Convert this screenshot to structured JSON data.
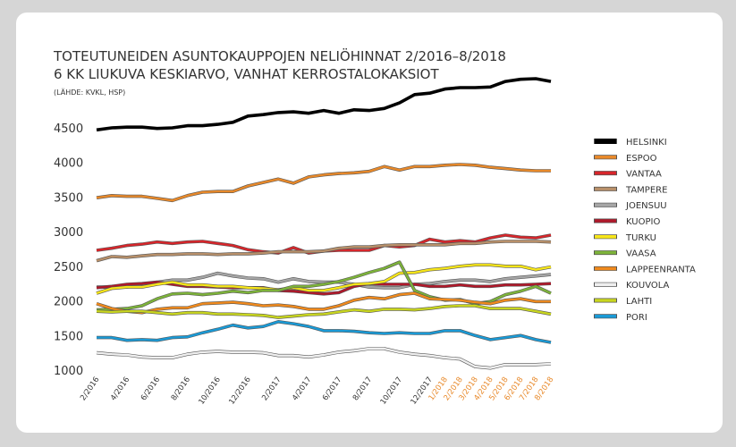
{
  "chart_data": {
    "type": "line",
    "title": "TOTEUTUNEIDEN ASUNTOKAUPPOJEN NELIÖHINNAT 2/2016–8/2018",
    "subtitle": "6 KK LIUKUVA KESKIARVO, VANHAT KERROSTALOKAKSIOT",
    "source": "(LÄHDE: KVKL, HSP)",
    "categories": [
      "2/2016",
      null,
      "4/2016",
      null,
      "6/2016",
      null,
      "8/2016",
      null,
      "10/2016",
      null,
      "12/2016",
      null,
      "2/2017",
      null,
      "4/2017",
      null,
      "6/2017",
      null,
      "8/2017",
      null,
      "10/2017",
      null,
      "12/2017",
      "1/2018",
      "2/2018",
      "3/2018",
      "4/2018",
      "5/2018",
      "6/2018",
      "7/2018",
      "8/2018"
    ],
    "category_colors": [
      "#333333",
      "#333333",
      "#333333",
      "#333333",
      "#333333",
      "#333333",
      "#333333",
      "#333333",
      "#333333",
      "#333333",
      "#333333",
      "#333333",
      "#333333",
      "#333333",
      "#333333",
      "#333333",
      "#333333",
      "#333333",
      "#333333",
      "#333333",
      "#333333",
      "#333333",
      "#333333",
      "#e8892a",
      "#e8892a",
      "#e8892a",
      "#e8892a",
      "#e8892a",
      "#e8892a",
      "#e8892a",
      "#e8892a"
    ],
    "ylim": [
      1000,
      5300
    ],
    "yticks": [
      1000,
      1500,
      2000,
      2500,
      3000,
      3500,
      4000,
      4500
    ],
    "legend": "right",
    "series": [
      {
        "name": "HELSINKI",
        "color": "#000000",
        "values": [
          4470,
          4500,
          4510,
          4510,
          4490,
          4500,
          4530,
          4530,
          4550,
          4580,
          4670,
          4690,
          4720,
          4730,
          4710,
          4750,
          4710,
          4760,
          4750,
          4780,
          4860,
          4980,
          5000,
          5060,
          5080,
          5080,
          5090,
          5170,
          5200,
          5210,
          5170
        ]
      },
      {
        "name": "ESPOO",
        "color": "#e8892a",
        "values": [
          3490,
          3520,
          3510,
          3510,
          3480,
          3450,
          3520,
          3570,
          3580,
          3580,
          3660,
          3710,
          3760,
          3700,
          3790,
          3820,
          3840,
          3850,
          3870,
          3940,
          3890,
          3940,
          3940,
          3960,
          3970,
          3960,
          3930,
          3910,
          3890,
          3880,
          3880
        ]
      },
      {
        "name": "VANTAA",
        "color": "#d7262b",
        "values": [
          2730,
          2760,
          2800,
          2820,
          2850,
          2830,
          2850,
          2860,
          2830,
          2800,
          2740,
          2710,
          2690,
          2770,
          2690,
          2720,
          2730,
          2730,
          2730,
          2800,
          2780,
          2800,
          2890,
          2850,
          2870,
          2850,
          2910,
          2950,
          2920,
          2910,
          2950
        ]
      },
      {
        "name": "TAMPERE",
        "color": "#b8906a",
        "values": [
          2580,
          2640,
          2630,
          2650,
          2670,
          2670,
          2680,
          2680,
          2670,
          2680,
          2680,
          2690,
          2710,
          2710,
          2710,
          2720,
          2760,
          2780,
          2780,
          2800,
          2810,
          2810,
          2810,
          2810,
          2830,
          2830,
          2850,
          2860,
          2860,
          2860,
          2850
        ]
      },
      {
        "name": "JOENSUU",
        "color": "#a6a6a6",
        "values": [
          2200,
          2200,
          2200,
          2240,
          2270,
          2300,
          2300,
          2340,
          2400,
          2360,
          2330,
          2320,
          2270,
          2320,
          2280,
          2270,
          2270,
          2240,
          2200,
          2190,
          2190,
          2240,
          2250,
          2280,
          2300,
          2300,
          2280,
          2320,
          2340,
          2360,
          2380
        ]
      },
      {
        "name": "KUOPIO",
        "color": "#b0182a",
        "values": [
          2190,
          2210,
          2240,
          2250,
          2270,
          2240,
          2210,
          2210,
          2200,
          2190,
          2190,
          2190,
          2150,
          2140,
          2120,
          2100,
          2120,
          2210,
          2250,
          2240,
          2240,
          2240,
          2210,
          2210,
          2230,
          2210,
          2210,
          2230,
          2230,
          2240,
          2250
        ]
      },
      {
        "name": "TURKU",
        "color": "#f7e619",
        "values": [
          2110,
          2180,
          2200,
          2200,
          2240,
          2270,
          2230,
          2230,
          2210,
          2210,
          2190,
          2180,
          2160,
          2190,
          2150,
          2150,
          2190,
          2240,
          2250,
          2280,
          2400,
          2410,
          2450,
          2470,
          2500,
          2520,
          2520,
          2500,
          2500,
          2450,
          2490
        ]
      },
      {
        "name": "VAASA",
        "color": "#7db33a",
        "values": [
          1870,
          1880,
          1890,
          1930,
          2030,
          2100,
          2110,
          2090,
          2110,
          2140,
          2120,
          2150,
          2150,
          2210,
          2210,
          2240,
          2280,
          2340,
          2410,
          2470,
          2560,
          2150,
          2060,
          2010,
          2020,
          1960,
          1990,
          2090,
          2140,
          2210,
          2110
        ]
      },
      {
        "name": "LAPPEENRANTA",
        "color": "#f08a1d",
        "values": [
          1960,
          1890,
          1850,
          1830,
          1880,
          1900,
          1900,
          1960,
          1970,
          1980,
          1960,
          1930,
          1940,
          1920,
          1880,
          1880,
          1930,
          2010,
          2050,
          2030,
          2090,
          2110,
          2030,
          2020,
          2010,
          1980,
          1960,
          2010,
          2030,
          1990,
          1990
        ]
      },
      {
        "name": "KOUVOLA",
        "color": "#eeeeee",
        "values": [
          1250,
          1230,
          1220,
          1190,
          1180,
          1180,
          1230,
          1260,
          1270,
          1260,
          1260,
          1250,
          1210,
          1210,
          1190,
          1220,
          1260,
          1280,
          1310,
          1310,
          1260,
          1230,
          1210,
          1180,
          1160,
          1050,
          1030,
          1080,
          1080,
          1080,
          1090
        ]
      },
      {
        "name": "LAHTI",
        "color": "#c9d61f",
        "values": [
          1850,
          1840,
          1850,
          1850,
          1830,
          1810,
          1830,
          1830,
          1810,
          1810,
          1800,
          1790,
          1760,
          1780,
          1800,
          1810,
          1840,
          1870,
          1850,
          1880,
          1880,
          1870,
          1890,
          1920,
          1930,
          1930,
          1890,
          1890,
          1890,
          1850,
          1810
        ]
      },
      {
        "name": "PORI",
        "color": "#1a9ad6",
        "values": [
          1470,
          1470,
          1430,
          1440,
          1430,
          1470,
          1480,
          1540,
          1590,
          1650,
          1610,
          1630,
          1700,
          1670,
          1630,
          1570,
          1570,
          1560,
          1540,
          1530,
          1540,
          1530,
          1530,
          1570,
          1570,
          1500,
          1440,
          1470,
          1500,
          1440,
          1400
        ]
      }
    ]
  }
}
